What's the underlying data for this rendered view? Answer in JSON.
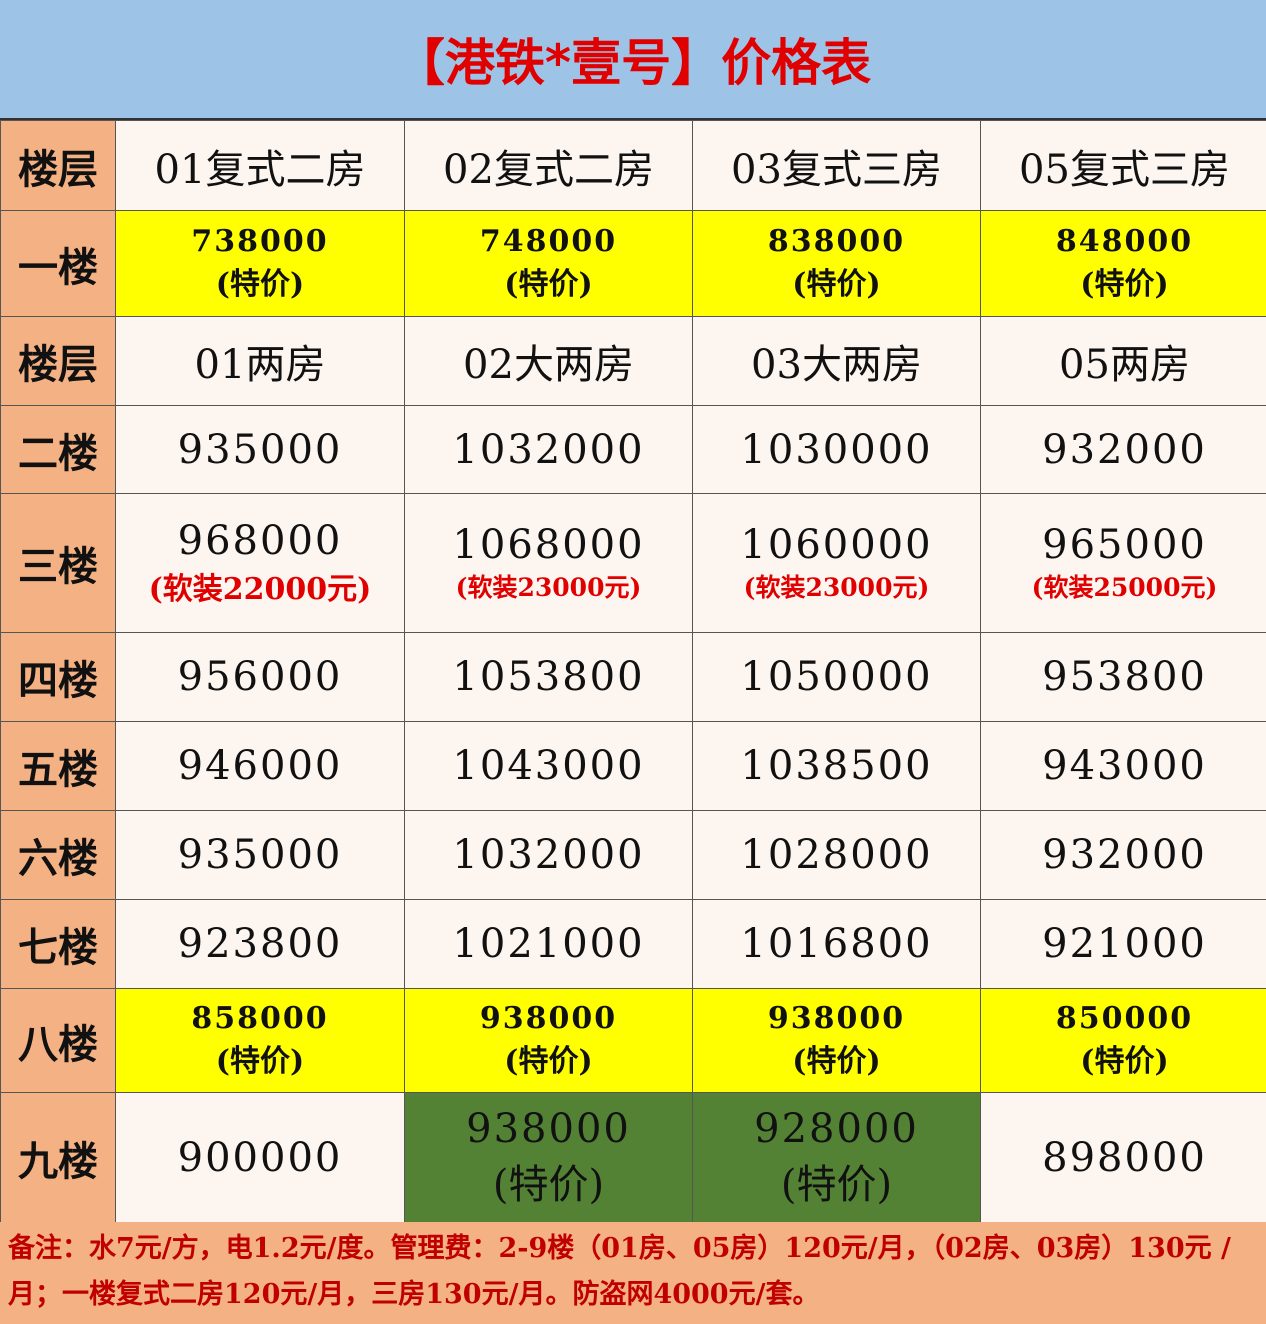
{
  "title": "【港铁*壹号】价格表",
  "colors": {
    "title_bg": "#9dc3e6",
    "title_text": "#e00000",
    "label_bg": "#f4b183",
    "cell_bg": "#fdf5ef",
    "highlight_yellow": "#ffff00",
    "highlight_green": "#548235",
    "note_red": "#e00000"
  },
  "rows": [
    {
      "type": "header",
      "label": "楼层",
      "cells": [
        "01复式二房",
        "02复式二房",
        "03复式三房",
        "05复式三房"
      ]
    },
    {
      "type": "data",
      "label": "一楼",
      "cells": [
        {
          "price": "738000",
          "note": "(特价)",
          "highlight": "yellow"
        },
        {
          "price": "748000",
          "note": "(特价)",
          "highlight": "yellow"
        },
        {
          "price": "838000",
          "note": "(特价)",
          "highlight": "yellow"
        },
        {
          "price": "848000",
          "note": "(特价)",
          "highlight": "yellow"
        }
      ]
    },
    {
      "type": "header",
      "label": "楼层",
      "cells": [
        "01两房",
        "02大两房",
        "03大两房",
        "05两房"
      ]
    },
    {
      "type": "data",
      "label": "二楼",
      "cells": [
        {
          "price": "935000"
        },
        {
          "price": "1032000"
        },
        {
          "price": "1030000"
        },
        {
          "price": "932000"
        }
      ]
    },
    {
      "type": "data",
      "label": "三楼",
      "cells": [
        {
          "price": "968000",
          "note": "(软装22000元)",
          "note_color": "red"
        },
        {
          "price": "1068000",
          "note": "(软装23000元)",
          "note_color": "red"
        },
        {
          "price": "1060000",
          "note": "(软装23000元)",
          "note_color": "red"
        },
        {
          "price": "965000",
          "note": "(软装25000元)",
          "note_color": "red"
        }
      ]
    },
    {
      "type": "data",
      "label": "四楼",
      "cells": [
        {
          "price": "956000"
        },
        {
          "price": "1053800"
        },
        {
          "price": "1050000"
        },
        {
          "price": "953800"
        }
      ]
    },
    {
      "type": "data",
      "label": "五楼",
      "cells": [
        {
          "price": "946000"
        },
        {
          "price": "1043000"
        },
        {
          "price": "1038500"
        },
        {
          "price": "943000"
        }
      ]
    },
    {
      "type": "data",
      "label": "六楼",
      "cells": [
        {
          "price": "935000"
        },
        {
          "price": "1032000"
        },
        {
          "price": "1028000"
        },
        {
          "price": "932000"
        }
      ]
    },
    {
      "type": "data",
      "label": "七楼",
      "cells": [
        {
          "price": "923800"
        },
        {
          "price": "1021000"
        },
        {
          "price": "1016800"
        },
        {
          "price": "921000"
        }
      ]
    },
    {
      "type": "data",
      "label": "八楼",
      "cells": [
        {
          "price": "858000",
          "note": "(特价)",
          "highlight": "yellow"
        },
        {
          "price": "938000",
          "note": "(特价)",
          "highlight": "yellow"
        },
        {
          "price": "938000",
          "note": "(特价)",
          "highlight": "yellow"
        },
        {
          "price": "850000",
          "note": "(特价)",
          "highlight": "yellow"
        }
      ]
    },
    {
      "type": "data",
      "label": "九楼",
      "cells": [
        {
          "price": "900000"
        },
        {
          "price": "938000",
          "note": "(特价)",
          "highlight": "green"
        },
        {
          "price": "928000",
          "note": "(特价)",
          "highlight": "green"
        },
        {
          "price": "898000"
        }
      ]
    }
  ],
  "footer": {
    "note": "备注：水7元/方，电1.2元/度。管理费：2-9楼（01房、05房）120元/月，（02房、03房）130元 /月；一楼复式二房120元/月，三房130元/月。防盗网4000元/套。"
  }
}
